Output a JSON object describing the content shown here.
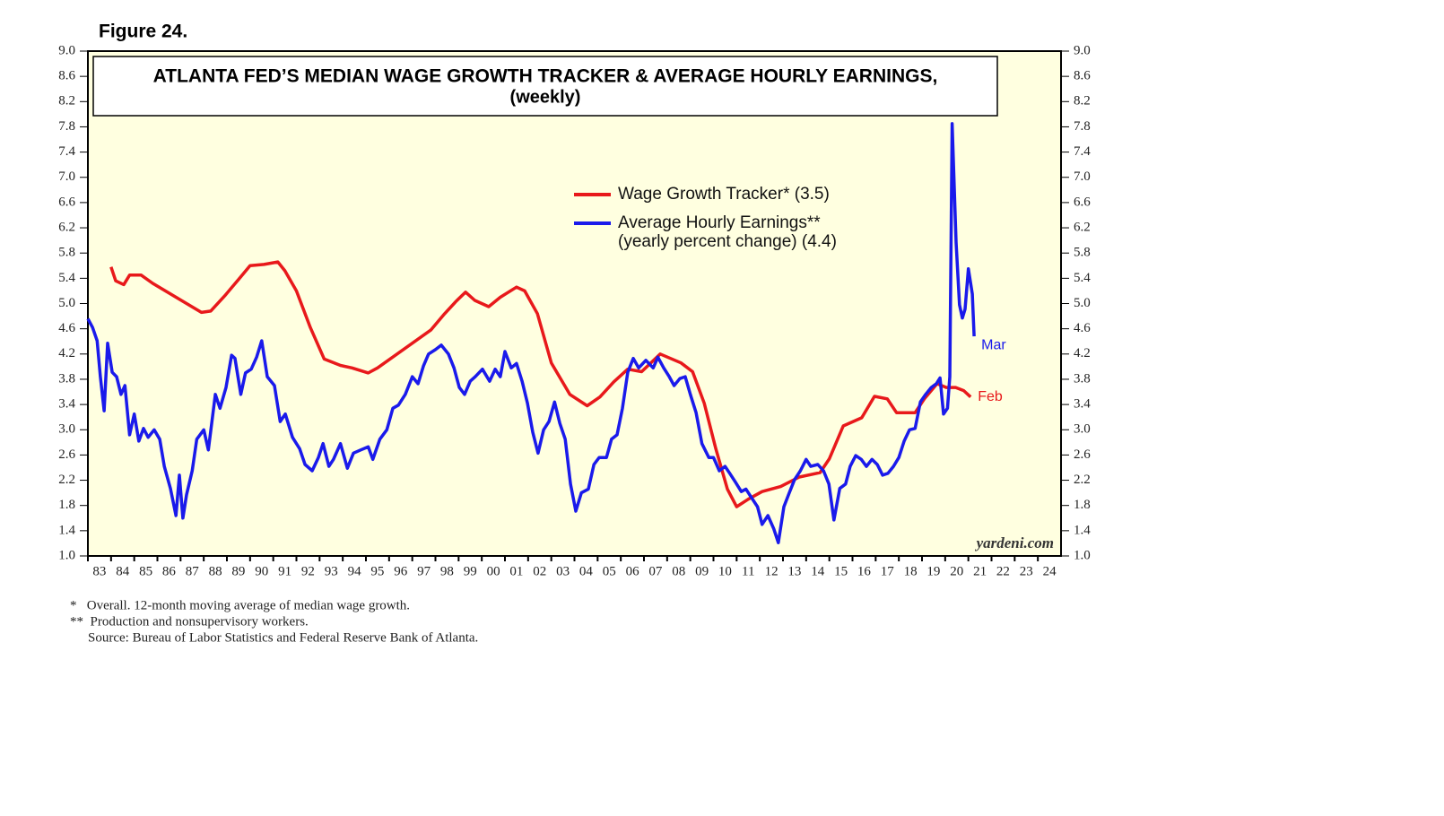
{
  "chart_data": {
    "type": "line",
    "figure_label": "Figure 24.",
    "title": "ATLANTA FED’S MEDIAN WAGE GROWTH TRACKER & AVERAGE HOURLY EARNINGS,",
    "subtitle": "(weekly)",
    "source_mark": "yardeni.com",
    "footnotes": [
      "*   Overall. 12-month moving average of median wage growth.",
      "**  Production and nonsupervisory workers.",
      "Source: Bureau of Labor Statistics and Federal Reserve Bank of Atlanta."
    ],
    "background": "#ffffe0",
    "legend": "top-center",
    "xlim": [
      1983,
      2025
    ],
    "xticks": [
      {
        "value": 1983,
        "label": "83"
      },
      {
        "value": 1984,
        "label": "84"
      },
      {
        "value": 1985,
        "label": "85"
      },
      {
        "value": 1986,
        "label": "86"
      },
      {
        "value": 1987,
        "label": "87"
      },
      {
        "value": 1988,
        "label": "88"
      },
      {
        "value": 1989,
        "label": "89"
      },
      {
        "value": 1990,
        "label": "90"
      },
      {
        "value": 1991,
        "label": "91"
      },
      {
        "value": 1992,
        "label": "92"
      },
      {
        "value": 1993,
        "label": "93"
      },
      {
        "value": 1994,
        "label": "94"
      },
      {
        "value": 1995,
        "label": "95"
      },
      {
        "value": 1996,
        "label": "96"
      },
      {
        "value": 1997,
        "label": "97"
      },
      {
        "value": 1998,
        "label": "98"
      },
      {
        "value": 1999,
        "label": "99"
      },
      {
        "value": 2000,
        "label": "00"
      },
      {
        "value": 2001,
        "label": "01"
      },
      {
        "value": 2002,
        "label": "02"
      },
      {
        "value": 2003,
        "label": "03"
      },
      {
        "value": 2004,
        "label": "04"
      },
      {
        "value": 2005,
        "label": "05"
      },
      {
        "value": 2006,
        "label": "06"
      },
      {
        "value": 2007,
        "label": "07"
      },
      {
        "value": 2008,
        "label": "08"
      },
      {
        "value": 2009,
        "label": "09"
      },
      {
        "value": 2010,
        "label": "10"
      },
      {
        "value": 2011,
        "label": "11"
      },
      {
        "value": 2012,
        "label": "12"
      },
      {
        "value": 2013,
        "label": "13"
      },
      {
        "value": 2014,
        "label": "14"
      },
      {
        "value": 2015,
        "label": "15"
      },
      {
        "value": 2016,
        "label": "16"
      },
      {
        "value": 2017,
        "label": "17"
      },
      {
        "value": 2018,
        "label": "18"
      },
      {
        "value": 2019,
        "label": "19"
      },
      {
        "value": 2020,
        "label": "20"
      },
      {
        "value": 2021,
        "label": "21"
      },
      {
        "value": 2022,
        "label": "22"
      },
      {
        "value": 2023,
        "label": "23"
      },
      {
        "value": 2024,
        "label": "24"
      }
    ],
    "ylim": [
      1,
      9
    ],
    "yticks": [
      {
        "value": 1,
        "label": "1.0"
      },
      {
        "value": 1.4,
        "label": "1.4"
      },
      {
        "value": 1.8,
        "label": "1.8"
      },
      {
        "value": 2.2,
        "label": "2.2"
      },
      {
        "value": 2.6,
        "label": "2.6"
      },
      {
        "value": 3,
        "label": "3.0"
      },
      {
        "value": 3.4,
        "label": "3.4"
      },
      {
        "value": 3.8,
        "label": "3.8"
      },
      {
        "value": 4.2,
        "label": "4.2"
      },
      {
        "value": 4.6,
        "label": "4.6"
      },
      {
        "value": 5,
        "label": "5.0"
      },
      {
        "value": 5.4,
        "label": "5.4"
      },
      {
        "value": 5.8,
        "label": "5.8"
      },
      {
        "value": 6.2,
        "label": "6.2"
      },
      {
        "value": 6.6,
        "label": "6.6"
      },
      {
        "value": 7,
        "label": "7.0"
      },
      {
        "value": 7.4,
        "label": "7.4"
      },
      {
        "value": 7.8,
        "label": "7.8"
      },
      {
        "value": 8.2,
        "label": "8.2"
      },
      {
        "value": 8.6,
        "label": "8.6"
      },
      {
        "value": 9,
        "label": "9.0"
      }
    ],
    "series": [
      {
        "name": [
          "Wage Growth Tracker* (3.5)"
        ],
        "color": "#e8191b",
        "end_label": "Feb",
        "x": [
          1984.0,
          1984.2,
          1984.55,
          1984.8,
          1985.3,
          1985.8,
          1987.9,
          1988.3,
          1988.9,
          1989.5,
          1990.0,
          1990.6,
          1991.2,
          1991.5,
          1992.0,
          1992.6,
          1993.2,
          1993.9,
          1994.4,
          1995.1,
          1995.5,
          1997.8,
          1998.4,
          1998.9,
          1999.3,
          1999.7,
          2000.3,
          2000.8,
          2001.5,
          2001.85,
          2002.4,
          2003.0,
          2003.8,
          2004.55,
          2005.1,
          2005.7,
          2006.3,
          2006.9,
          2007.7,
          2008.6,
          2009.1,
          2009.6,
          2010.1,
          2010.6,
          2011.0,
          2011.5,
          2012.1,
          2012.9,
          2013.7,
          2014.6,
          2015.0,
          2015.6,
          2016.4,
          2016.95,
          2017.5,
          2017.9,
          2018.7,
          2019.1,
          2019.65,
          2020.05,
          2020.45,
          2020.8,
          2021.1
        ],
        "values": [
          5.58,
          5.36,
          5.3,
          5.45,
          5.45,
          5.32,
          4.86,
          4.88,
          5.12,
          5.38,
          5.6,
          5.62,
          5.66,
          5.52,
          5.2,
          4.62,
          4.12,
          4.02,
          3.98,
          3.9,
          3.98,
          4.58,
          4.84,
          5.04,
          5.18,
          5.05,
          4.95,
          5.1,
          5.26,
          5.2,
          4.84,
          4.06,
          3.56,
          3.38,
          3.52,
          3.76,
          3.96,
          3.92,
          4.2,
          4.06,
          3.92,
          3.42,
          2.7,
          2.06,
          1.78,
          1.9,
          2.02,
          2.1,
          2.25,
          2.32,
          2.54,
          3.06,
          3.19,
          3.53,
          3.49,
          3.27,
          3.27,
          3.49,
          3.73,
          3.67,
          3.67,
          3.62,
          3.52
        ]
      },
      {
        "name": [
          "Average Hourly Earnings**",
          "(yearly percent change) (4.4)"
        ],
        "color": "#1a1aeb",
        "end_label": "Mar",
        "x": [
          1983.0,
          1983.2,
          1983.4,
          1983.54,
          1983.7,
          1983.85,
          1984.05,
          1984.24,
          1984.43,
          1984.6,
          1984.8,
          1985.0,
          1985.2,
          1985.4,
          1985.6,
          1985.86,
          1986.1,
          1986.3,
          1986.56,
          1986.8,
          1986.95,
          1987.1,
          1987.26,
          1987.5,
          1987.7,
          1988.0,
          1988.2,
          1988.5,
          1988.7,
          1988.96,
          1989.2,
          1989.35,
          1989.6,
          1989.8,
          1990.05,
          1990.28,
          1990.5,
          1990.74,
          1991.05,
          1991.3,
          1991.52,
          1991.83,
          1992.14,
          1992.37,
          1992.68,
          1992.95,
          1993.15,
          1993.4,
          1993.6,
          1993.9,
          1994.2,
          1994.46,
          1994.77,
          1995.1,
          1995.3,
          1995.6,
          1995.9,
          1996.16,
          1996.4,
          1996.7,
          1997.0,
          1997.25,
          1997.48,
          1997.7,
          1998.0,
          1998.25,
          1998.56,
          1998.8,
          1999.03,
          1999.26,
          1999.5,
          1999.72,
          2000.03,
          2000.34,
          2000.58,
          2000.8,
          2001.0,
          2001.27,
          2001.5,
          2001.74,
          2001.97,
          2002.2,
          2002.43,
          2002.67,
          2002.9,
          2003.14,
          2003.37,
          2003.6,
          2003.83,
          2004.06,
          2004.3,
          2004.6,
          2004.84,
          2005.07,
          2005.38,
          2005.6,
          2005.84,
          2006.07,
          2006.3,
          2006.54,
          2006.77,
          2007.08,
          2007.4,
          2007.6,
          2007.85,
          2008.09,
          2008.3,
          2008.55,
          2008.78,
          2009.0,
          2009.25,
          2009.5,
          2009.8,
          2010.0,
          2010.25,
          2010.5,
          2010.7,
          2010.95,
          2011.2,
          2011.4,
          2011.65,
          2011.9,
          2012.1,
          2012.35,
          2012.6,
          2012.8,
          2013.04,
          2013.27,
          2013.5,
          2013.75,
          2014.0,
          2014.2,
          2014.5,
          2014.75,
          2014.98,
          2015.2,
          2015.45,
          2015.7,
          2015.9,
          2016.14,
          2016.38,
          2016.6,
          2016.84,
          2017.07,
          2017.3,
          2017.53,
          2017.77,
          2018.0,
          2018.23,
          2018.46,
          2018.7,
          2018.93,
          2019.16,
          2019.4,
          2019.62,
          2019.78,
          2019.93,
          2020.1,
          2020.2,
          2020.3,
          2020.47,
          2020.62,
          2020.74,
          2020.86,
          2021.0,
          2021.17,
          2021.25
        ],
        "values": [
          4.76,
          4.62,
          4.41,
          3.84,
          3.3,
          4.37,
          3.91,
          3.84,
          3.56,
          3.7,
          2.92,
          3.25,
          2.82,
          3.02,
          2.88,
          3.0,
          2.85,
          2.42,
          2.07,
          1.64,
          2.28,
          1.6,
          1.97,
          2.35,
          2.85,
          3.0,
          2.68,
          3.56,
          3.34,
          3.67,
          4.18,
          4.13,
          3.56,
          3.9,
          3.96,
          4.15,
          4.41,
          3.84,
          3.7,
          3.13,
          3.25,
          2.88,
          2.7,
          2.45,
          2.35,
          2.56,
          2.78,
          2.42,
          2.53,
          2.78,
          2.39,
          2.63,
          2.68,
          2.73,
          2.53,
          2.85,
          3.0,
          3.34,
          3.39,
          3.56,
          3.84,
          3.73,
          4.01,
          4.2,
          4.27,
          4.34,
          4.2,
          3.98,
          3.67,
          3.56,
          3.77,
          3.84,
          3.96,
          3.77,
          3.96,
          3.84,
          4.24,
          3.98,
          4.05,
          3.77,
          3.42,
          2.96,
          2.63,
          3.0,
          3.13,
          3.44,
          3.1,
          2.85,
          2.14,
          1.71,
          2.0,
          2.06,
          2.45,
          2.56,
          2.56,
          2.85,
          2.92,
          3.34,
          3.91,
          4.13,
          3.98,
          4.1,
          3.98,
          4.15,
          3.98,
          3.84,
          3.7,
          3.81,
          3.84,
          3.56,
          3.27,
          2.78,
          2.56,
          2.56,
          2.35,
          2.42,
          2.31,
          2.17,
          2.02,
          2.06,
          1.92,
          1.78,
          1.5,
          1.64,
          1.43,
          1.21,
          1.78,
          2.0,
          2.21,
          2.35,
          2.53,
          2.42,
          2.45,
          2.35,
          2.14,
          1.57,
          2.07,
          2.14,
          2.42,
          2.59,
          2.53,
          2.42,
          2.53,
          2.45,
          2.28,
          2.31,
          2.42,
          2.56,
          2.82,
          3.0,
          3.02,
          3.44,
          3.56,
          3.67,
          3.73,
          3.82,
          3.25,
          3.34,
          3.84,
          7.85,
          5.97,
          4.98,
          4.77,
          4.91,
          5.55,
          5.15,
          4.48
        ]
      }
    ]
  }
}
